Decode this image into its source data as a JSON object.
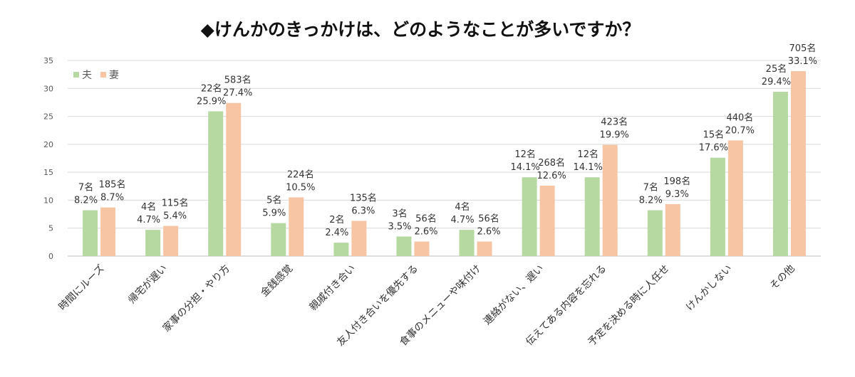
{
  "chart_data": {
    "type": "bar",
    "title": "◆けんかのきっかけは、どのようなことが多いですか？",
    "categories": [
      "時間にルーズ",
      "帰宅が遅い",
      "家事の分担・やり方",
      "金銭感覚",
      "親戚付き合い",
      "友人付き合いを優先する",
      "食事のメニューや味付け",
      "連絡がない、遅い",
      "伝えてある内容を忘れる",
      "予定を決める時に人任せ",
      "けんかしない",
      "その他"
    ],
    "series": [
      {
        "name": "夫",
        "color": "#b6d9a2",
        "values": [
          8.2,
          4.7,
          25.9,
          5.9,
          2.4,
          3.5,
          4.7,
          14.1,
          14.1,
          8.2,
          17.6,
          29.4
        ],
        "counts": [
          "7名",
          "4名",
          "22名",
          "5名",
          "2名",
          "3名",
          "4名",
          "12名",
          "12名",
          "7名",
          "15名",
          "25名"
        ],
        "labels": [
          "8.2%",
          "4.7%",
          "25.9%",
          "5.9%",
          "2.4%",
          "3.5%",
          "4.7%",
          "14.1%",
          "14.1%",
          "8.2%",
          "17.6%",
          "29.4%"
        ]
      },
      {
        "name": "妻",
        "color": "#f7c5a4",
        "values": [
          8.7,
          5.4,
          27.4,
          10.5,
          6.3,
          2.6,
          2.6,
          12.6,
          19.9,
          9.3,
          20.7,
          33.1
        ],
        "counts": [
          "185名",
          "115名",
          "583名",
          "224名",
          "135名",
          "56名",
          "56名",
          "268名",
          "423名",
          "198名",
          "440名",
          "705名"
        ],
        "labels": [
          "8.7%",
          "5.4%",
          "27.4%",
          "10.5%",
          "6.3%",
          "2.6%",
          "2.6%",
          "12.6%",
          "19.9%",
          "9.3%",
          "20.7%",
          "33.1%"
        ]
      }
    ],
    "ylim": [
      0,
      35
    ],
    "yticks": [
      "0",
      "5",
      "10",
      "15",
      "20",
      "25",
      "30",
      "35"
    ],
    "grid": true,
    "legend": "top-left"
  }
}
